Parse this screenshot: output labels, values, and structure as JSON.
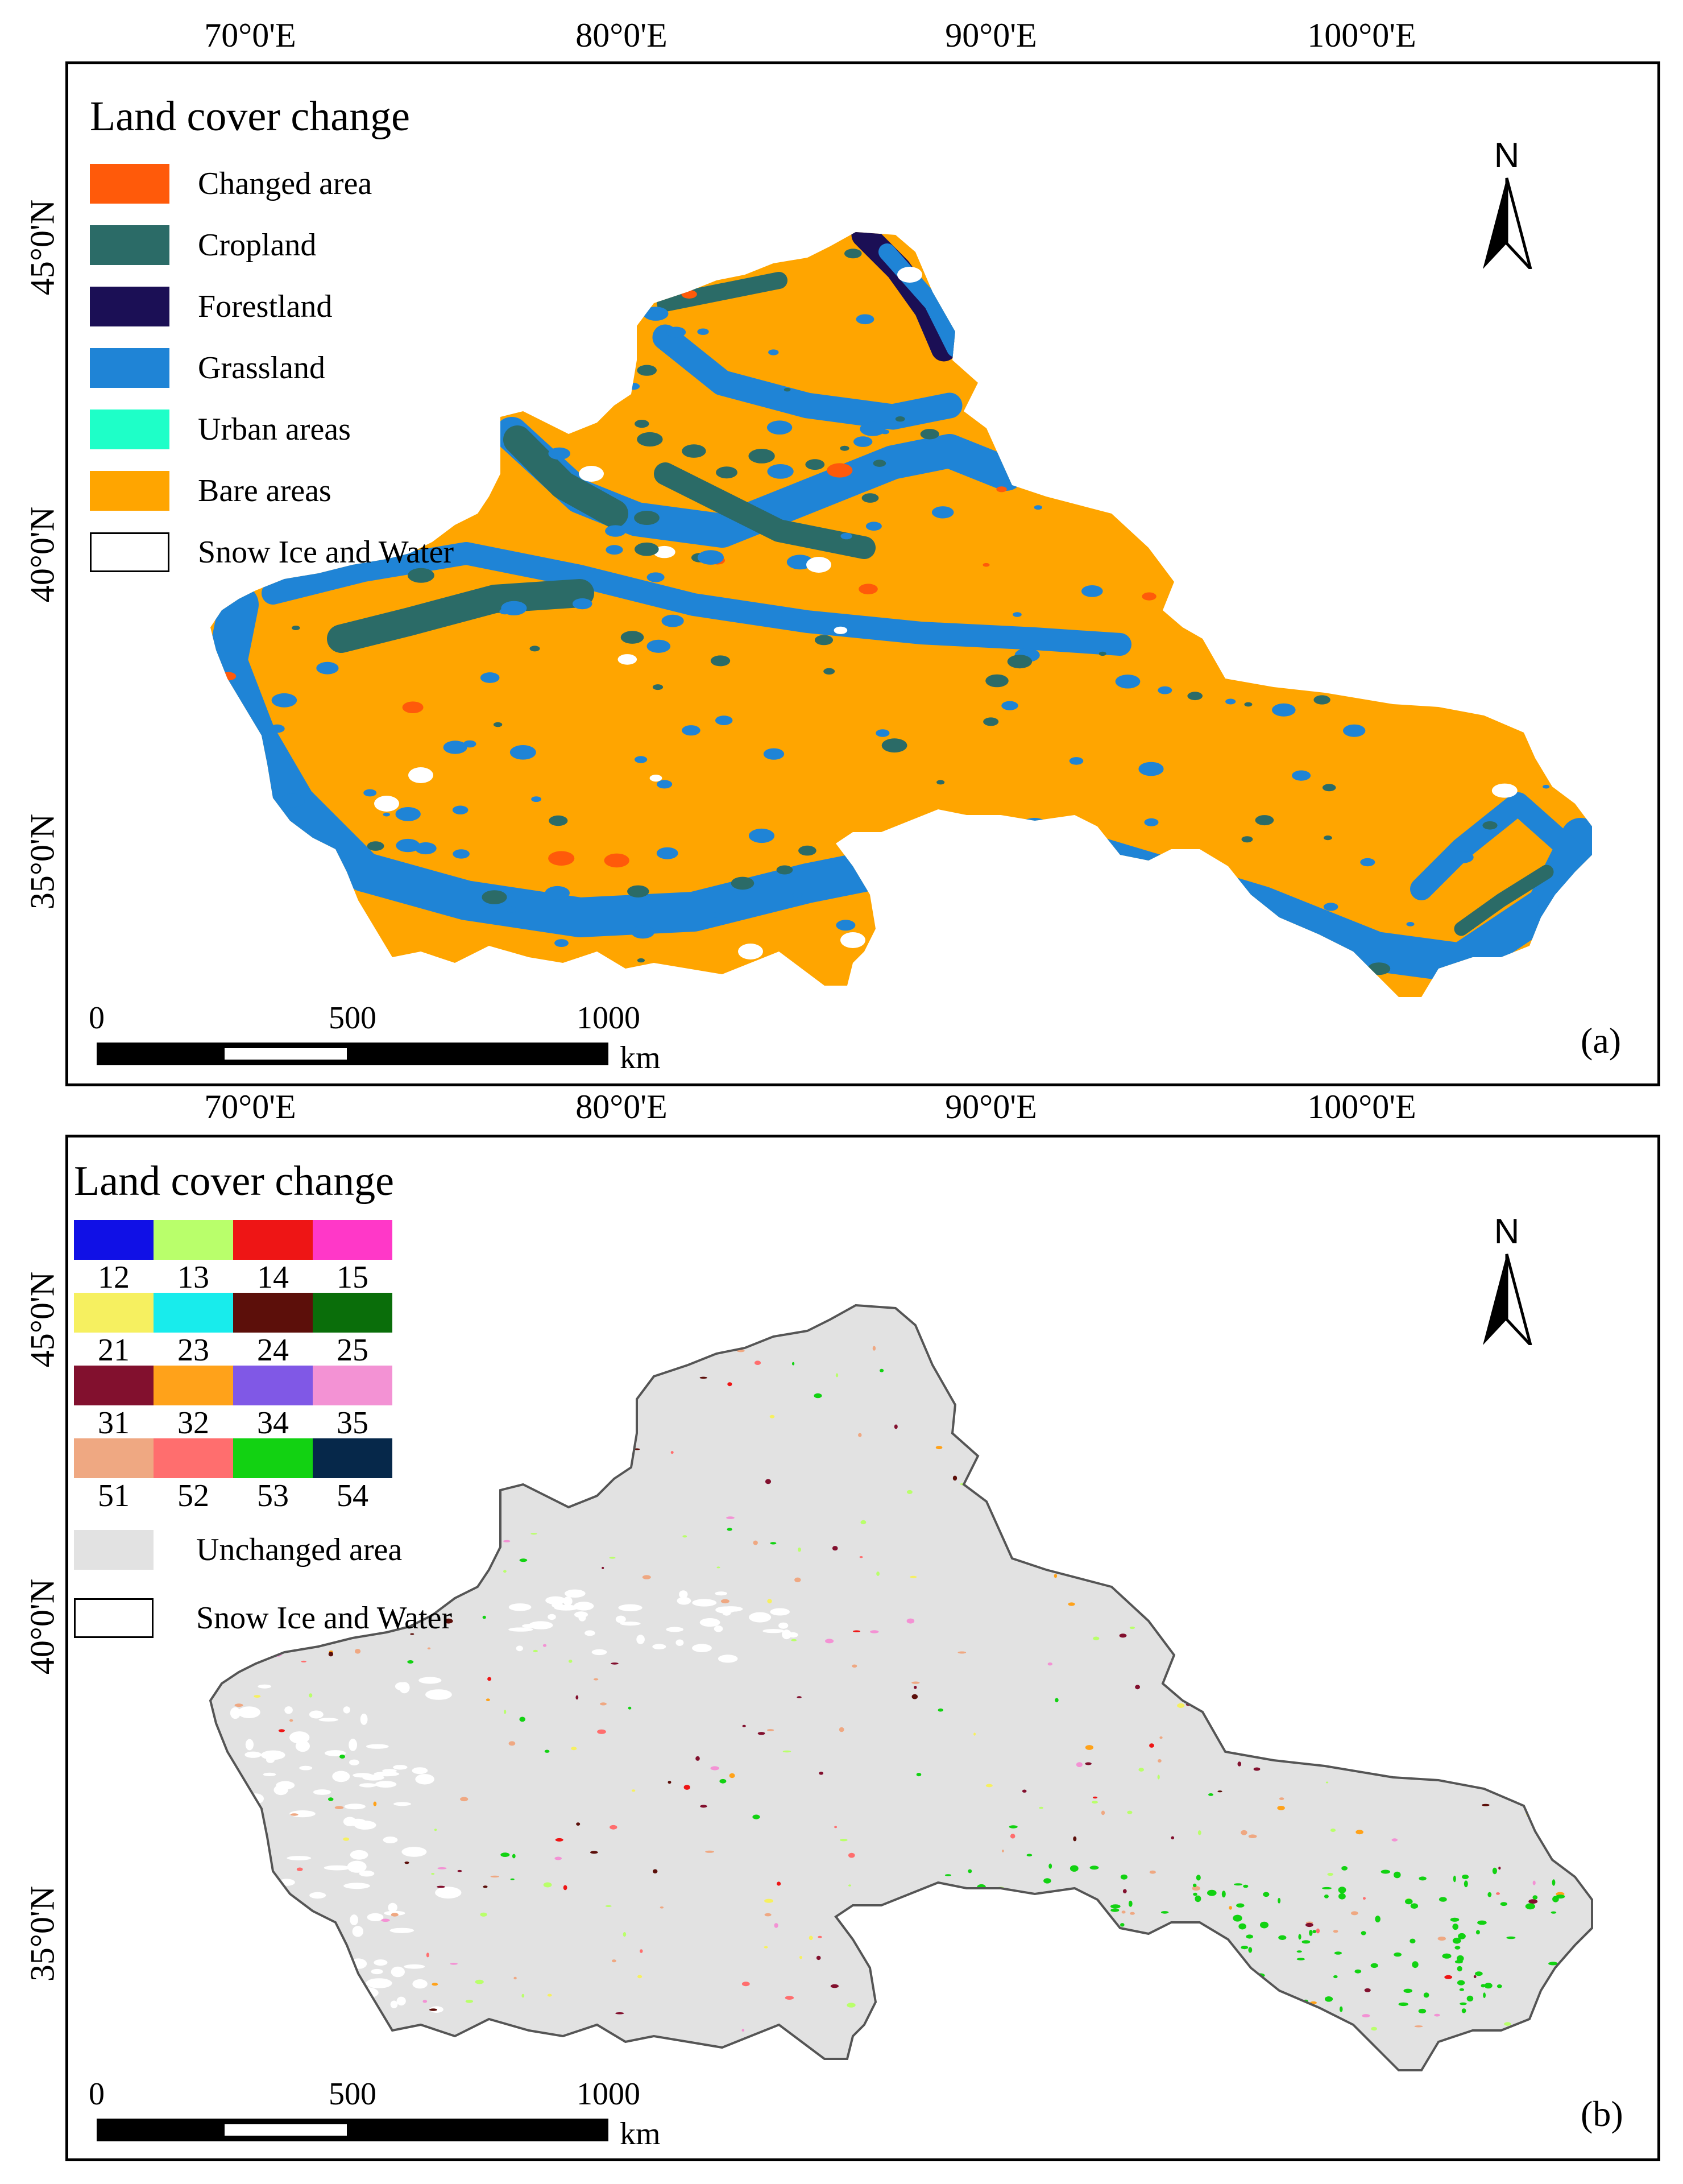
{
  "graticule": {
    "lon_labels": [
      "70°0'E",
      "80°0'E",
      "90°0'E",
      "100°0'E"
    ],
    "lat_labels": [
      "45°0'N",
      "40°0'N",
      "35°0'N"
    ]
  },
  "panel_a": {
    "legend_title": "Land cover change",
    "legend_items": [
      {
        "label": "Changed area",
        "color": "#ff5a0a"
      },
      {
        "label": "Cropland",
        "color": "#2b6b67"
      },
      {
        "label": "Forestland",
        "color": "#1b0f55"
      },
      {
        "label": "Grassland",
        "color": "#1f84d6"
      },
      {
        "label": "Urban areas",
        "color": "#1effc8"
      },
      {
        "label": "Bare areas",
        "color": "#ffa500"
      },
      {
        "label": "Snow Ice and Water",
        "color": "#ffffff"
      }
    ],
    "panel_tag": "(a)"
  },
  "panel_b": {
    "legend_title": "Land cover change",
    "codes": [
      {
        "code": "12",
        "color": "#1010e6"
      },
      {
        "code": "13",
        "color": "#b9ff6b"
      },
      {
        "code": "14",
        "color": "#ee1515"
      },
      {
        "code": "15",
        "color": "#ff38c8"
      },
      {
        "code": "21",
        "color": "#f6f060"
      },
      {
        "code": "23",
        "color": "#18ecec"
      },
      {
        "code": "24",
        "color": "#5c0f0a"
      },
      {
        "code": "25",
        "color": "#0a6e0a"
      },
      {
        "code": "31",
        "color": "#82102e"
      },
      {
        "code": "32",
        "color": "#ffa21a"
      },
      {
        "code": "34",
        "color": "#8058e6"
      },
      {
        "code": "35",
        "color": "#f392d4"
      },
      {
        "code": "51",
        "color": "#efa882"
      },
      {
        "code": "52",
        "color": "#ff6e6e"
      },
      {
        "code": "53",
        "color": "#12d212"
      },
      {
        "code": "54",
        "color": "#06284a"
      }
    ],
    "unchanged_label": "Unchanged area",
    "unchanged_color": "#e2e2e2",
    "snow_label": "Snow Ice and Water",
    "panel_tag": "(b)"
  },
  "scale_bar": {
    "ticks": [
      "0",
      "500",
      "1000"
    ],
    "unit": "km"
  },
  "north_arrow": {
    "letter": "N"
  }
}
